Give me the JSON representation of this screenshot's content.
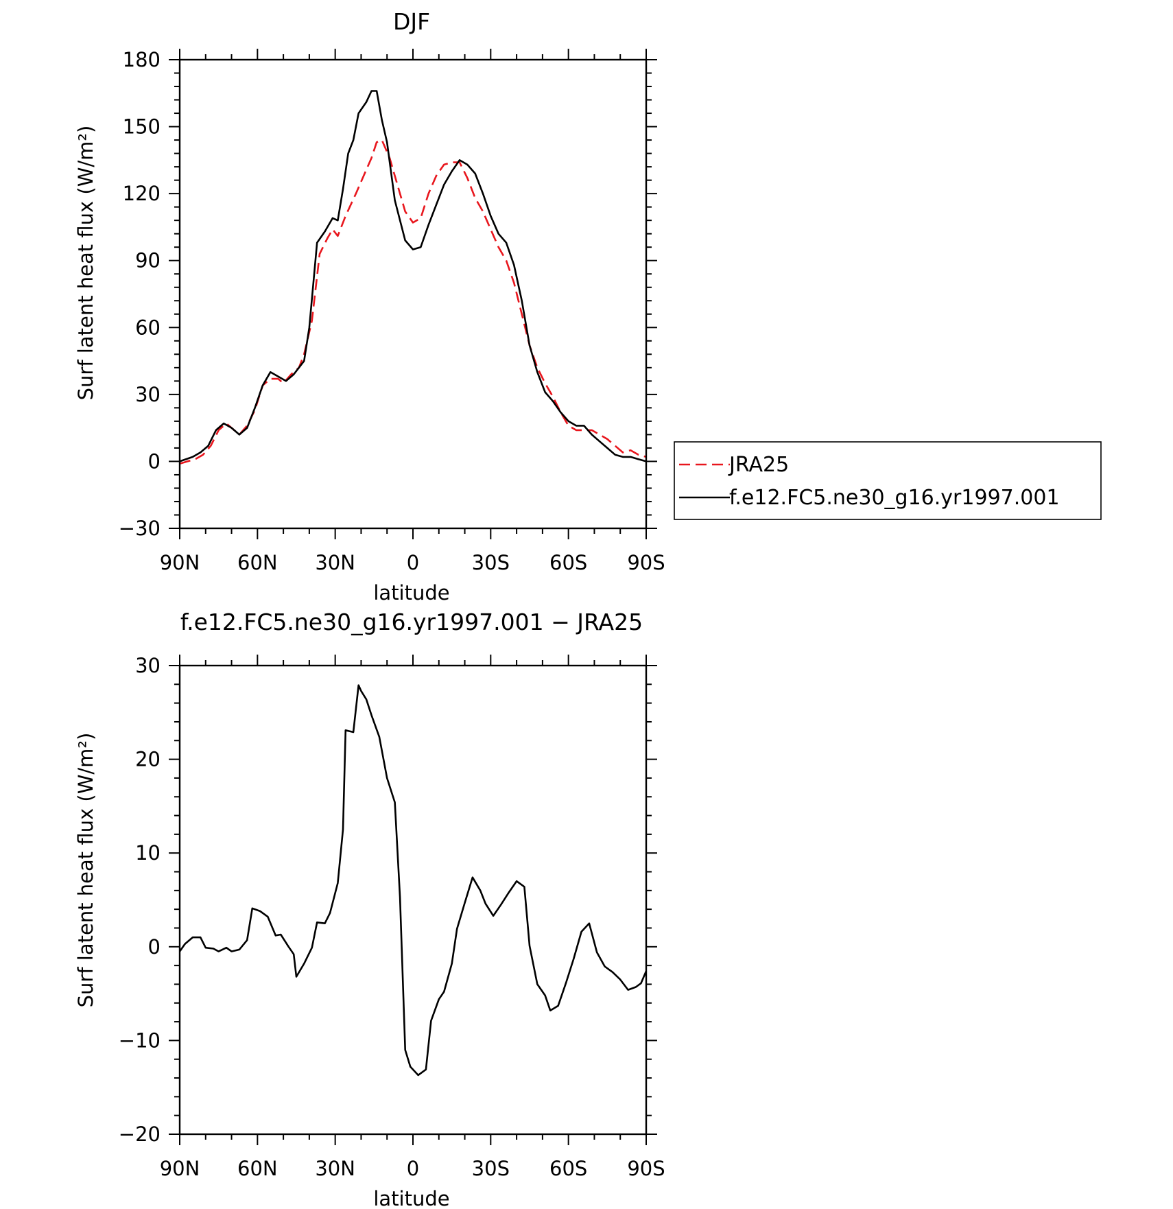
{
  "colors": {
    "JRA25": "#e8161d",
    "model": "#000000"
  },
  "chart_data": [
    {
      "type": "line",
      "title": "DJF",
      "xlabel": "latitude",
      "ylabel": "Surf latent heat flux (W/m²)",
      "xlim": [
        -90,
        90
      ],
      "ylim": [
        -30,
        180
      ],
      "xticks": [
        -90,
        -60,
        -30,
        0,
        30,
        60,
        90
      ],
      "xticklabels": [
        "90N",
        "60N",
        "30N",
        "0",
        "30S",
        "60S",
        "90S"
      ],
      "yticks": [
        -30,
        0,
        30,
        60,
        90,
        120,
        150,
        180
      ],
      "yticklabels": [
        "−30",
        "0",
        "30",
        "60",
        "90",
        "120",
        "150",
        "180"
      ],
      "legend": {
        "position": "right",
        "entries": [
          "JRA25",
          "f.e12.FC5.ne30_g16.yr1997.001"
        ]
      },
      "series": [
        {
          "name": "JRA25",
          "color": "#e8161d",
          "dash": "dashed",
          "x": [
            -90,
            -84,
            -81,
            -78,
            -75,
            -72,
            -70,
            -67,
            -64,
            -61,
            -58,
            -55,
            -52,
            -50,
            -47,
            -44,
            -42,
            -39,
            -36,
            -33,
            -31,
            -29,
            -26,
            -22,
            -19,
            -16,
            -14,
            -12,
            -9,
            -6,
            -3,
            0,
            3,
            6,
            9,
            12,
            15,
            18,
            21,
            24,
            27,
            30,
            33,
            36,
            39,
            42,
            45,
            48,
            51,
            54,
            57,
            60,
            63,
            66,
            69,
            72,
            75,
            78,
            81,
            84,
            87,
            90
          ],
          "y": [
            -1,
            1,
            3,
            7,
            14,
            17,
            15,
            12,
            16,
            23,
            34,
            37,
            37,
            35,
            39,
            42,
            48,
            63,
            93,
            100,
            104,
            101,
            110,
            120,
            128,
            136,
            143,
            144,
            136,
            124,
            112,
            107,
            109,
            120,
            128,
            133,
            134,
            134,
            127,
            118,
            112,
            104,
            96,
            90,
            80,
            66,
            52,
            42,
            35,
            29,
            22,
            16,
            14,
            14,
            14,
            12,
            10,
            7,
            4,
            5,
            3,
            2
          ]
        },
        {
          "name": "f.e12.FC5.ne30_g16.yr1997.001",
          "color": "#000000",
          "dash": "solid",
          "x": [
            -90,
            -85,
            -82,
            -79,
            -76,
            -73,
            -70,
            -67,
            -64,
            -61,
            -58,
            -55,
            -52,
            -49,
            -46,
            -44,
            -42,
            -40,
            -37,
            -34,
            -31,
            -29,
            -27,
            -25,
            -23,
            -21,
            -18,
            -16,
            -14,
            -12,
            -10,
            -7,
            -3,
            0,
            3,
            6,
            9,
            12,
            15,
            18,
            21,
            24,
            27,
            30,
            33,
            36,
            39,
            42,
            45,
            48,
            51,
            54,
            57,
            60,
            63,
            66,
            69,
            72,
            75,
            78,
            81,
            84,
            87,
            90
          ],
          "y": [
            0,
            2,
            4,
            7,
            14,
            17,
            15,
            12,
            15,
            24,
            34,
            40,
            38,
            36,
            39,
            42,
            45,
            60,
            98,
            103,
            109,
            108,
            122,
            138,
            144,
            156,
            161,
            166,
            166,
            153,
            143,
            117,
            99,
            95,
            96,
            106,
            115,
            124,
            130,
            135,
            133,
            129,
            120,
            110,
            102,
            98,
            88,
            72,
            52,
            40,
            31,
            27,
            22,
            18,
            16,
            16,
            12,
            9,
            6,
            3,
            2,
            2,
            1,
            0
          ]
        }
      ]
    },
    {
      "type": "line",
      "title": "f.e12.FC5.ne30_g16.yr1997.001 − JRA25",
      "xlabel": "latitude",
      "ylabel": "Surf latent heat flux (W/m²)",
      "xlim": [
        -90,
        90
      ],
      "ylim": [
        -20,
        30
      ],
      "xticks": [
        -90,
        -60,
        -30,
        0,
        30,
        60,
        90
      ],
      "xticklabels": [
        "90N",
        "60N",
        "30N",
        "0",
        "30S",
        "60S",
        "90S"
      ],
      "yticks": [
        -20,
        -10,
        0,
        10,
        20,
        30
      ],
      "yticklabels": [
        "−20",
        "−10",
        "0",
        "10",
        "20",
        "30"
      ],
      "series": [
        {
          "color": "#000000",
          "dash": "solid",
          "x": [
            -90,
            -88,
            -85,
            -82,
            -80,
            -77,
            -75,
            -72,
            -70,
            -67,
            -64,
            -62,
            -59,
            -56,
            -53,
            -51,
            -48,
            -46,
            -45,
            -42,
            -39,
            -37,
            -34,
            -32,
            -29,
            -27,
            -26,
            -23,
            -21,
            -20,
            -18,
            -16,
            -13,
            -10,
            -7,
            -5,
            -3,
            -1,
            2,
            5,
            7,
            10,
            12,
            15,
            17,
            20,
            23,
            26,
            28,
            31,
            34,
            37,
            40,
            43,
            45,
            48,
            51,
            53,
            56,
            59,
            62,
            65,
            68,
            71,
            74,
            77,
            80,
            83,
            86,
            88,
            90
          ],
          "y": [
            -0.5,
            0.3,
            1.0,
            1.0,
            -0.1,
            -0.2,
            -0.5,
            -0.1,
            -0.5,
            -0.3,
            0.7,
            4.1,
            3.8,
            3.2,
            1.2,
            1.3,
            0,
            -0.8,
            -3.2,
            -1.8,
            -0.1,
            2.6,
            2.5,
            3.6,
            6.8,
            12.5,
            23.1,
            22.9,
            27.9,
            27.3,
            26.4,
            24.7,
            22.4,
            18.0,
            15.4,
            5.3,
            -11.0,
            -12.8,
            -13.7,
            -13.1,
            -7.9,
            -5.6,
            -4.8,
            -1.8,
            1.9,
            4.7,
            7.4,
            6.0,
            4.6,
            3.3,
            4.5,
            5.8,
            7.0,
            6.4,
            0.1,
            -4.0,
            -5.2,
            -6.8,
            -6.3,
            -3.9,
            -1.3,
            1.6,
            2.5,
            -0.6,
            -2.1,
            -2.7,
            -3.5,
            -4.6,
            -4.3,
            -3.9,
            -2.6
          ]
        }
      ]
    }
  ]
}
